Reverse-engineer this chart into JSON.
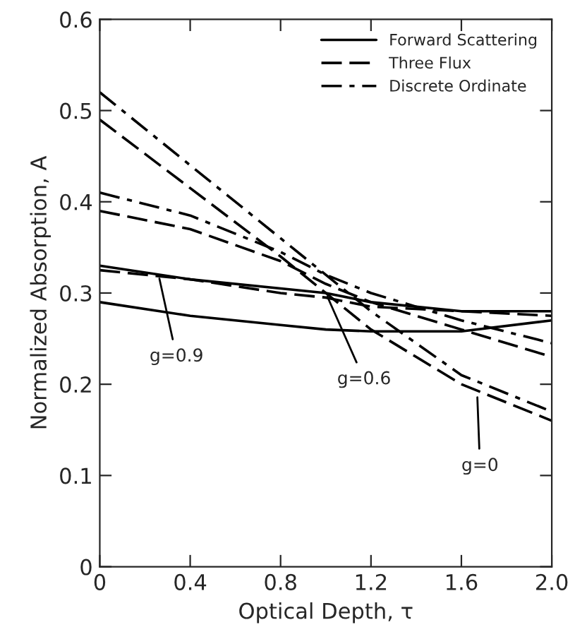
{
  "chart_data": {
    "type": "line",
    "xlabel": "Optical Depth, τ",
    "ylabel": "Normalized Absorption, A",
    "x": [
      0,
      0.4,
      0.8,
      1.0,
      1.2,
      1.6,
      2.0
    ],
    "series": [
      {
        "name": "Forward Scattering",
        "color": "#000000",
        "line_style": "solid",
        "values": [
          0.33,
          0.315,
          0.305,
          0.3,
          0.29,
          0.28,
          0.28
        ]
      },
      {
        "name": "Three Flux",
        "color": "#000000",
        "line_style": "dashed",
        "values": [
          0.49,
          0.415,
          0.34,
          0.3,
          0.26,
          0.2,
          0.16
        ]
      },
      {
        "name": "Discrete Ordinate",
        "color": "#000000",
        "line_style": "dashdot",
        "values": [
          0.52,
          0.44,
          0.36,
          0.32,
          0.28,
          0.21,
          0.17
        ]
      },
      {
        "color": "#000000",
        "line_style": "solid",
        "values": [
          0.29,
          0.275,
          0.265,
          0.26,
          0.258,
          0.258,
          0.27
        ]
      },
      {
        "color": "#000000",
        "line_style": "dashed",
        "values": [
          0.39,
          0.37,
          0.335,
          0.31,
          0.29,
          0.26,
          0.23
        ]
      },
      {
        "color": "#000000",
        "line_style": "dashed",
        "values": [
          0.325,
          0.315,
          0.3,
          0.295,
          0.285,
          0.28,
          0.275
        ]
      },
      {
        "color": "#000000",
        "line_style": "dashdot",
        "values": [
          0.41,
          0.385,
          0.345,
          0.32,
          0.3,
          0.27,
          0.245
        ]
      }
    ],
    "annotations": [
      {
        "text": "g=0.9",
        "x": 0.26,
        "y": 0.32
      },
      {
        "text": "g=0.6",
        "x": 1.0,
        "y": 0.3
      },
      {
        "text": "g=0",
        "x": 1.67,
        "y": 0.19
      }
    ],
    "xlim": [
      0,
      2.0
    ],
    "xticks": [
      0,
      0.4,
      0.8,
      1.2,
      1.6,
      {
        "value": 2,
        "label": "2.0"
      }
    ],
    "ylim": [
      0,
      0.6
    ],
    "yticks": [
      0,
      0.1,
      0.2,
      0.3,
      0.4,
      0.5,
      0.6
    ],
    "legend": "top right",
    "grid": false,
    "marker": "none"
  }
}
